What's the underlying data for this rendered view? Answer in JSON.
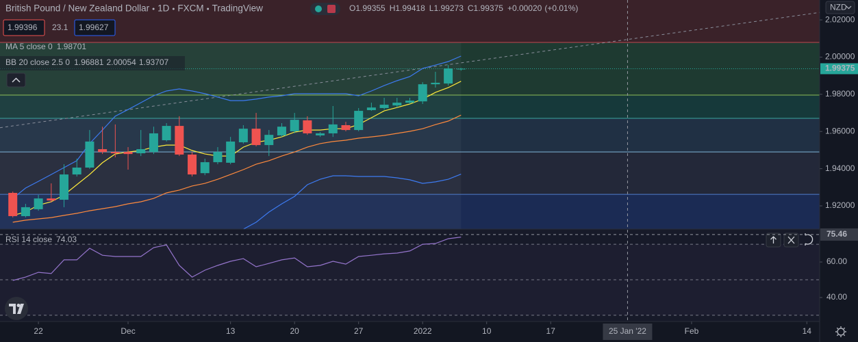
{
  "chart_data": [
    {
      "type": "candlestick",
      "title": "British Pound / New Zealand Dollar",
      "interval": "1D",
      "exchange": "FXCM",
      "source": "TradingView",
      "header": {
        "o_label": "O",
        "h_label": "H",
        "l_label": "L",
        "c_label": "C",
        "change": "+0.00020",
        "change_pct": "(+0.01%)"
      },
      "bid": 1.99396,
      "spread": 23.1,
      "ask": 1.99627,
      "currency": "NZD",
      "up_color": "#26a69a",
      "down_color": "#ef5350",
      "x": [
        "2021-11-18",
        "2021-11-19",
        "2021-11-22",
        "2021-11-23",
        "2021-11-24",
        "2021-11-25",
        "2021-11-26",
        "2021-11-29",
        "2021-11-30",
        "2021-12-01",
        "2021-12-02",
        "2021-12-03",
        "2021-12-06",
        "2021-12-07",
        "2021-12-08",
        "2021-12-09",
        "2021-12-10",
        "2021-12-13",
        "2021-12-14",
        "2021-12-15",
        "2021-12-16",
        "2021-12-17",
        "2021-12-20",
        "2021-12-21",
        "2021-12-22",
        "2021-12-23",
        "2021-12-24",
        "2021-12-27",
        "2021-12-28",
        "2021-12-29",
        "2021-12-30",
        "2021-12-31",
        "2022-01-03",
        "2022-01-04",
        "2022-01-05",
        "2022-01-06"
      ],
      "open": [
        1.927,
        1.9145,
        1.9182,
        1.924,
        1.9233,
        1.9369,
        1.9406,
        1.9505,
        1.949,
        1.949,
        1.9483,
        1.949,
        1.9553,
        1.963,
        1.9476,
        1.9376,
        1.9435,
        1.9432,
        1.9542,
        1.9615,
        1.9527,
        1.9579,
        1.9601,
        1.966,
        1.9579,
        1.959,
        1.9634,
        1.9608,
        1.9715,
        1.9726,
        1.974,
        1.9755,
        1.9762,
        1.9854,
        1.9858,
        1.99355
      ],
      "high": [
        1.9277,
        1.9211,
        1.9259,
        1.9321,
        1.9424,
        1.9454,
        1.9608,
        1.9626,
        1.9638,
        1.9516,
        1.9608,
        1.9626,
        1.9645,
        1.9682,
        1.949,
        1.9454,
        1.9516,
        1.9571,
        1.9634,
        1.97,
        1.9608,
        1.9645,
        1.97,
        1.9682,
        1.9597,
        1.9737,
        1.9652,
        1.9726,
        1.9755,
        1.9781,
        1.9781,
        1.9781,
        1.9865,
        1.9921,
        1.9957,
        1.99418
      ],
      "low": [
        1.9138,
        1.9138,
        1.9174,
        1.9218,
        1.9193,
        1.9358,
        1.9399,
        1.9479,
        1.9461,
        1.9395,
        1.9468,
        1.9479,
        1.9546,
        1.9468,
        1.9358,
        1.9365,
        1.9424,
        1.9424,
        1.9535,
        1.952,
        1.9468,
        1.9571,
        1.959,
        1.9582,
        1.9571,
        1.9571,
        1.9601,
        1.9601,
        1.9711,
        1.9718,
        1.9729,
        1.9748,
        1.9748,
        1.9836,
        1.9847,
        1.99273
      ],
      "close": [
        1.9145,
        1.9193,
        1.924,
        1.9229,
        1.9369,
        1.9406,
        1.9546,
        1.949,
        1.9483,
        1.9479,
        1.9505,
        1.959,
        1.963,
        1.9476,
        1.9369,
        1.9435,
        1.949,
        1.9546,
        1.9615,
        1.9527,
        1.9582,
        1.9626,
        1.9663,
        1.959,
        1.959,
        1.9638,
        1.9608,
        1.9711,
        1.9729,
        1.9744,
        1.9755,
        1.9766,
        1.9854,
        1.9862,
        1.9939,
        1.99375
      ],
      "indicators": [
        {
          "name": "MA 5 close 0",
          "lines": [
            {
              "color": "#ffeb3b",
              "values": [
                1.9149,
                1.9167,
                1.9204,
                1.9222,
                1.9259,
                1.9314,
                1.9369,
                1.9432,
                1.9479,
                1.949,
                1.9498,
                1.9516,
                1.9527,
                1.9527,
                1.9498,
                1.9479,
                1.9468,
                1.9468,
                1.9516,
                1.9542,
                1.9553,
                1.9571,
                1.9597,
                1.9608,
                1.9608,
                1.9615,
                1.9615,
                1.9638,
                1.9674,
                1.9711,
                1.9729,
                1.9748,
                1.9774,
                1.981,
                1.9836,
                1.98701
              ]
            }
          ]
        },
        {
          "name": "BB 20 close 2.5 0",
          "lines": [
            {
              "color": "#ff8a3d",
              "values": [
                1.9112,
                1.9123,
                1.913,
                1.9137,
                1.9149,
                1.916,
                1.9174,
                1.9185,
                1.9196,
                1.9211,
                1.9222,
                1.924,
                1.927,
                1.9285,
                1.9307,
                1.9321,
                1.9343,
                1.9369,
                1.9395,
                1.9424,
                1.9443,
                1.9468,
                1.949,
                1.9516,
                1.9535,
                1.9546,
                1.9553,
                1.9564,
                1.9571,
                1.9579,
                1.959,
                1.9601,
                1.9615,
                1.9637,
                1.9656,
                1.96881
              ]
            },
            {
              "color": "#3d7bf2",
              "values": [
                1.924,
                1.9296,
                1.9332,
                1.9369,
                1.9406,
                1.9443,
                1.9535,
                1.9608,
                1.9682,
                1.9718,
                1.9755,
                1.9792,
                1.9818,
                1.9829,
                1.9818,
                1.9803,
                1.9785,
                1.9766,
                1.9766,
                1.9774,
                1.9785,
                1.9792,
                1.9803,
                1.9803,
                1.9803,
                1.9803,
                1.9803,
                1.9792,
                1.9818,
                1.9847,
                1.9873,
                1.9895,
                1.9939,
                1.9957,
                1.9976,
                2.00054
              ]
            },
            {
              "color": "#3d7bf2",
              "values": [
                null,
                null,
                null,
                null,
                null,
                null,
                null,
                null,
                null,
                null,
                null,
                null,
                null,
                null,
                null,
                null,
                null,
                null,
                1.9075,
                1.9112,
                1.9167,
                1.9211,
                1.9251,
                1.9314,
                1.9343,
                1.9362,
                1.9362,
                1.9358,
                1.9358,
                1.9358,
                1.9351,
                1.934,
                1.9321,
                1.9329,
                1.9343,
                1.93707
              ]
            }
          ]
        }
      ],
      "top_fill": "#3a2229",
      "levels": [
        {
          "value": 2.0079,
          "color": "#c2474f",
          "fill": "#1e3a31"
        },
        {
          "value": 1.9796,
          "color": "#8fbf56",
          "fill": "#16393a"
        },
        {
          "value": 1.9671,
          "color": "#3aa6a0",
          "fill": "#203044"
        },
        {
          "value": 1.949,
          "color": "#7fb4d8",
          "fill": "#232839"
        },
        {
          "value": 1.9262,
          "color": "#4f7ccc",
          "fill": "#1b2b54"
        }
      ],
      "trendline": [
        1.963,
        1.9969
      ],
      "ylim": [
        1.9075,
        2.0307
      ],
      "yticks": [
        {
          "value": 2.02,
          "label": "2.02000"
        },
        {
          "value": 2.0,
          "label": "2.00000"
        },
        {
          "value": 1.98,
          "label": "1.98000"
        },
        {
          "value": 1.96,
          "label": "1.96000"
        },
        {
          "value": 1.94,
          "label": "1.94000"
        },
        {
          "value": 1.92,
          "label": "1.92000"
        }
      ],
      "xlim": [
        "2021-11-17",
        "2022-02-15"
      ],
      "xticks": [
        {
          "value": "2021-11-22",
          "label": "22"
        },
        {
          "value": "2021-12-01",
          "label": "Dec"
        },
        {
          "value": "2021-12-13",
          "label": "13"
        },
        {
          "value": "2021-12-20",
          "label": "20"
        },
        {
          "value": "2021-12-27",
          "label": "27"
        },
        {
          "value": "2022-01-03",
          "label": "2022"
        },
        {
          "value": "2022-01-10",
          "label": "10"
        },
        {
          "value": "2022-01-17",
          "label": "17"
        },
        {
          "value": "2022-02-01",
          "label": "Feb"
        },
        {
          "value": "2022-02-14",
          "label": "14"
        }
      ],
      "crosshair": {
        "value": "2022-01-25",
        "label": "25 Jan '22"
      }
    },
    {
      "type": "line",
      "name": "RSI 14 close",
      "color": "#9575cd",
      "values": [
        49.6,
        51.5,
        54.2,
        53.5,
        61.2,
        61.2,
        67.7,
        63.8,
        63.1,
        63.1,
        63.1,
        68.1,
        69.6,
        58.1,
        51.5,
        55.4,
        58.1,
        60.4,
        61.9,
        57.3,
        59.2,
        61.2,
        62.3,
        57.3,
        58.1,
        60.4,
        58.8,
        63.1,
        63.8,
        64.6,
        65.0,
        66.2,
        70.0,
        70.4,
        73.1,
        74.03
      ],
      "ylim": [
        26.5,
        78.5
      ],
      "yticks": [
        {
          "value": 60,
          "label": "60.00"
        },
        {
          "value": 40,
          "label": "40.00"
        }
      ],
      "levels": [
        70,
        50,
        30
      ],
      "crosshair": {
        "value": 75.46,
        "label": "75.46"
      }
    }
  ]
}
